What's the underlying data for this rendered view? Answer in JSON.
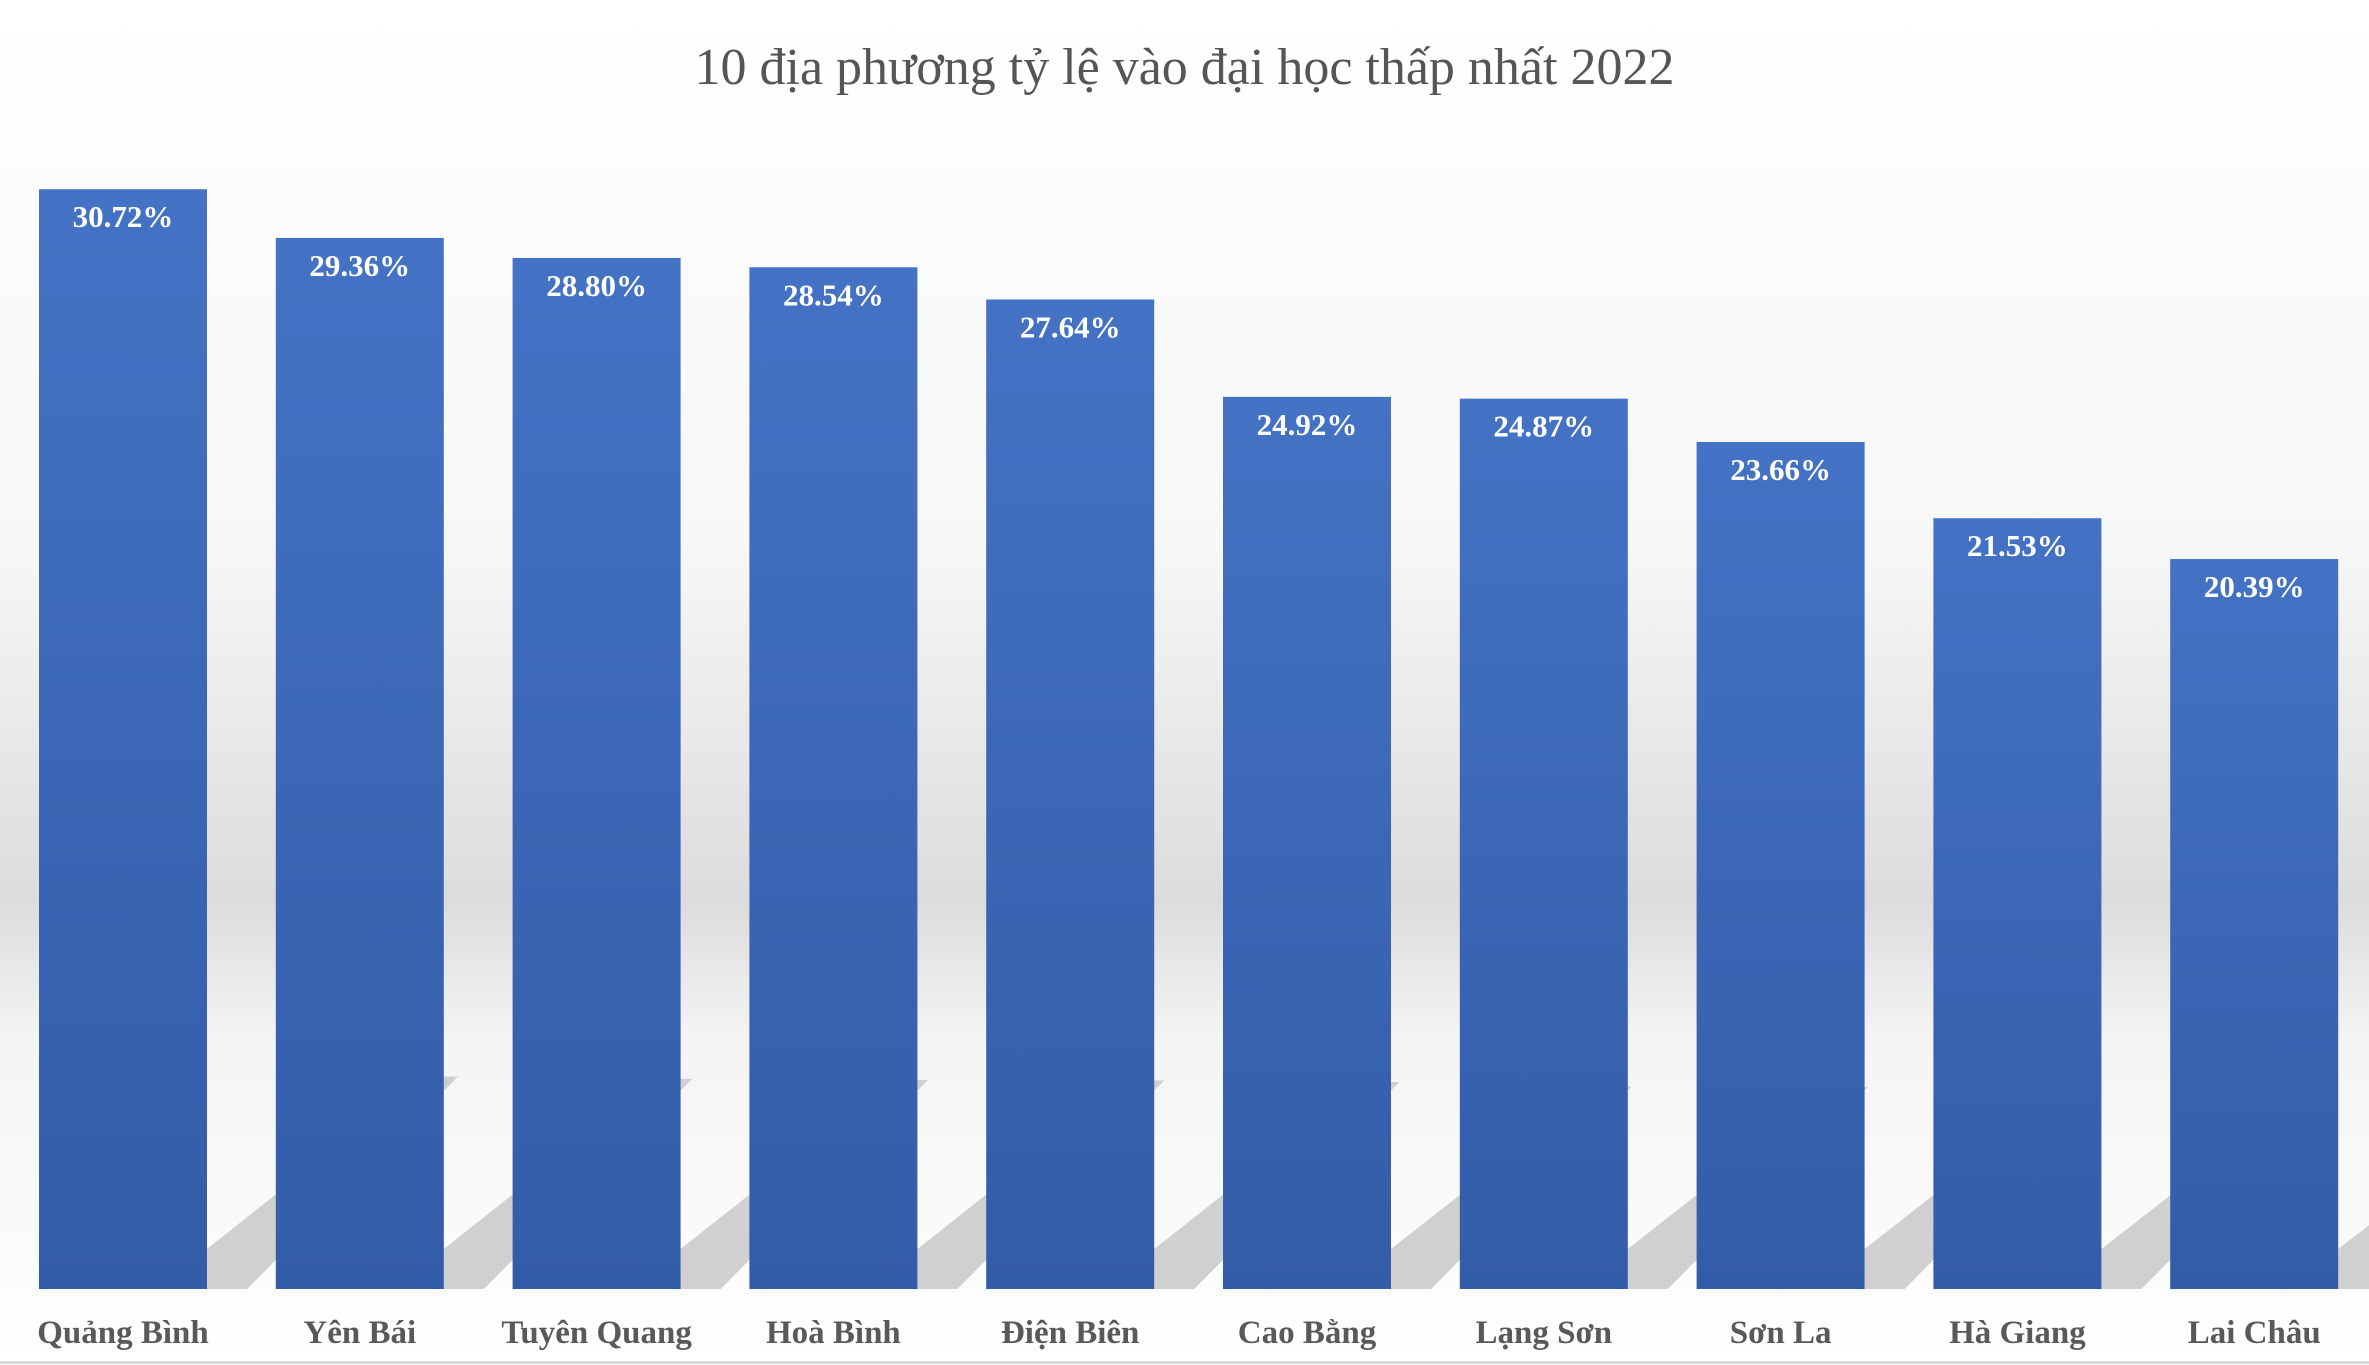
{
  "chart_data": {
    "type": "bar",
    "title": "10 địa phương tỷ lệ vào đại học thấp nhất 2022",
    "categories": [
      "Quảng Bình",
      "Yên Bái",
      "Tuyên Quang",
      "Hoà Bình",
      "Điện Biên",
      "Cao Bằng",
      "Lạng Sơn",
      "Sơn La",
      "Hà Giang",
      "Lai Châu"
    ],
    "values": [
      30.72,
      29.36,
      28.8,
      28.54,
      27.64,
      24.92,
      24.87,
      23.66,
      21.53,
      20.39
    ],
    "data_labels": [
      "30.72%",
      "29.36%",
      "28.80%",
      "28.54%",
      "27.64%",
      "24.92%",
      "24.87%",
      "23.66%",
      "21.53%",
      "20.39%"
    ],
    "unit": "%",
    "xlabel": "",
    "ylabel": "",
    "ylim": [
      0,
      36
    ],
    "grid": false,
    "legend": "none",
    "colors": {
      "bar_top": "#4472c4",
      "bar_bottom": "#335ca8",
      "label_text": "#595959",
      "title_text": "#555555",
      "data_label_text": "#ffffff"
    }
  }
}
